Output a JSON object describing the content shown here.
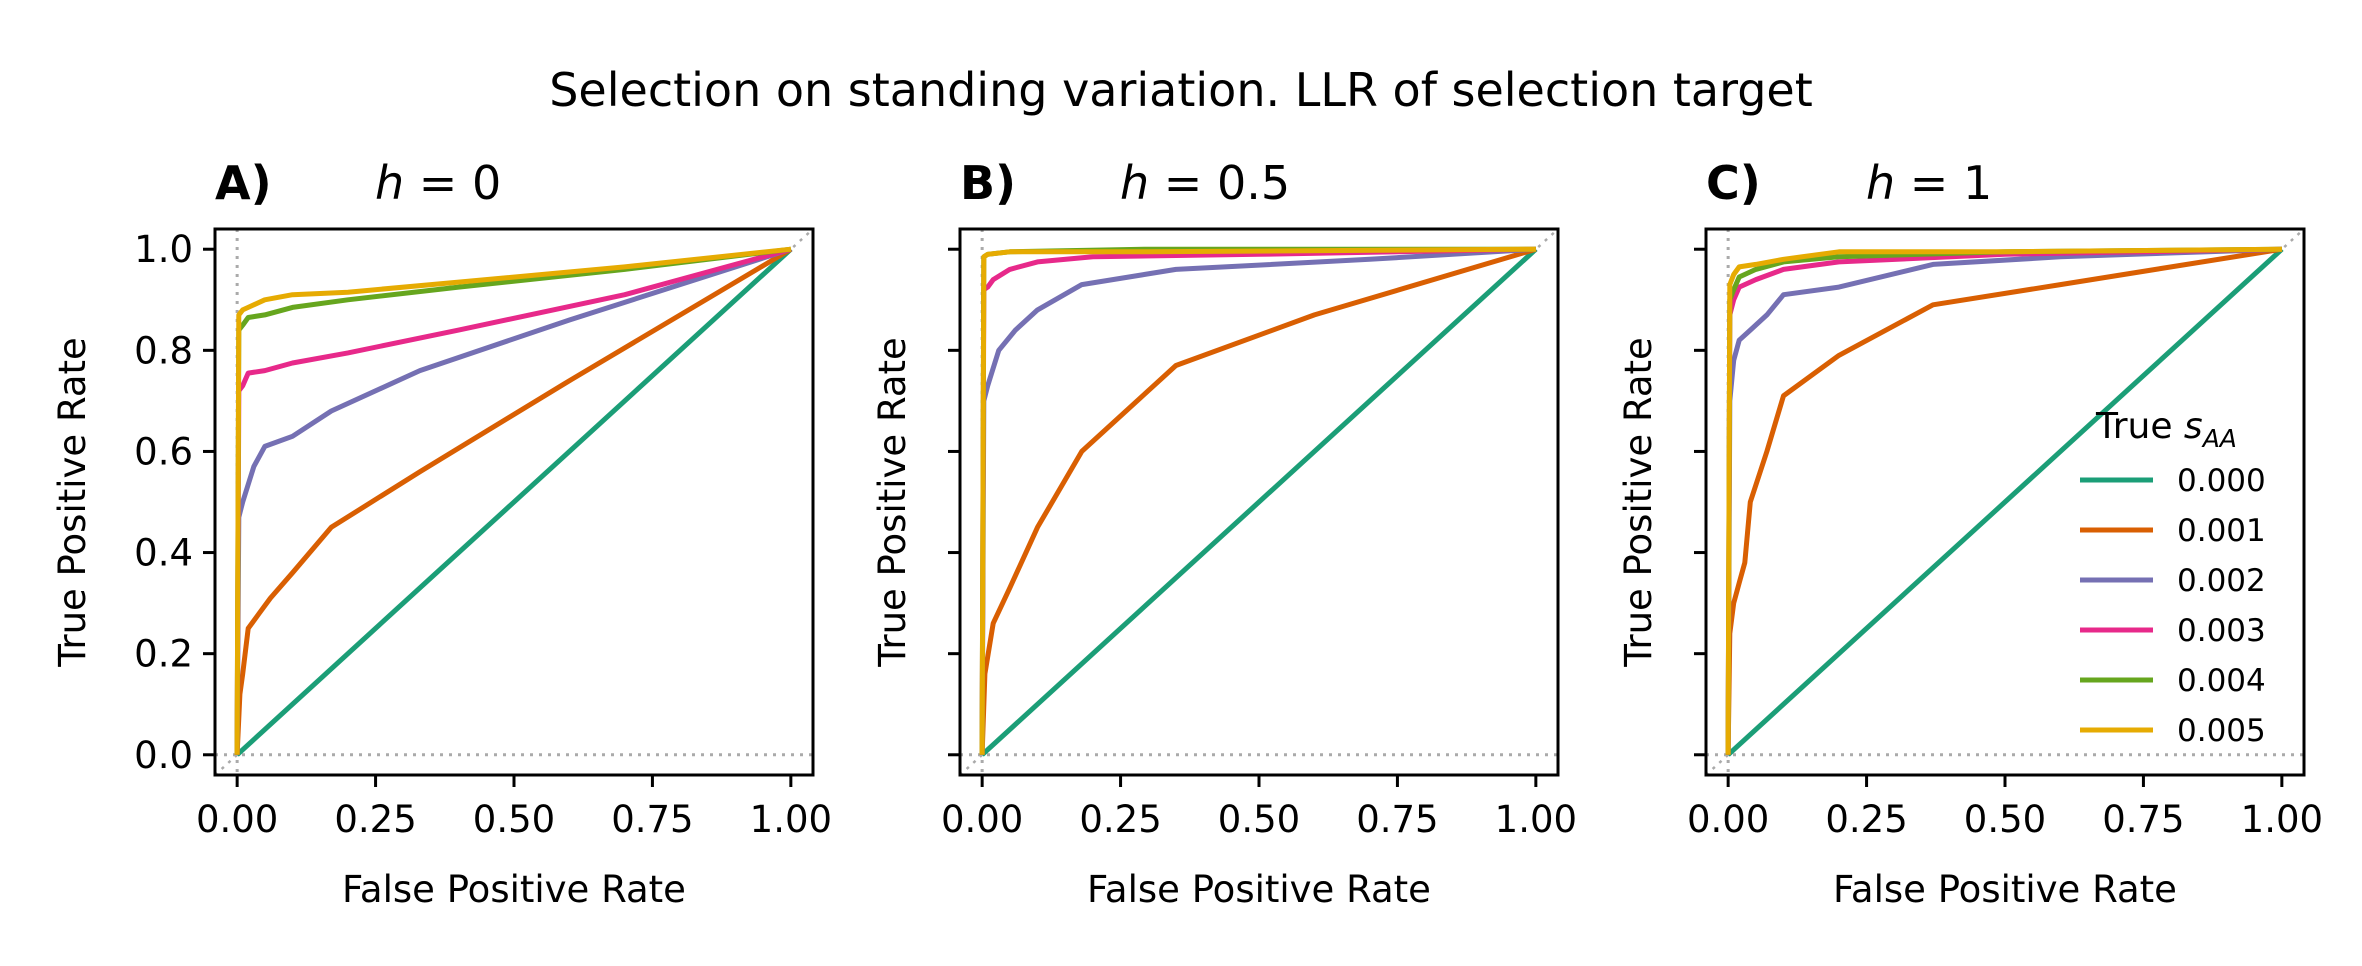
{
  "figure": {
    "title": "Selection on standing variation. LLR of selection target"
  },
  "colors": {
    "0.000": "#1b9e77",
    "0.001": "#d95f02",
    "0.002": "#7570b3",
    "0.003": "#e7298a",
    "0.004": "#66a61e",
    "0.005": "#e6ab02",
    "reference": "#aaaaaa"
  },
  "legend": {
    "title_text": "True ",
    "title_var": "s",
    "title_sub": "AA",
    "entries": [
      "0.000",
      "0.001",
      "0.002",
      "0.003",
      "0.004",
      "0.005"
    ]
  },
  "chart_data": [
    {
      "type": "line",
      "panel": "A)",
      "title": "h = 0",
      "title_var": "h",
      "title_val": "0",
      "xlabel": "False Positive Rate",
      "ylabel": "True Positive Rate",
      "xlim": [
        -0.04,
        1.04
      ],
      "ylim": [
        -0.04,
        1.04
      ],
      "xticks": [
        "0.00",
        "0.25",
        "0.50",
        "0.75",
        "1.00"
      ],
      "yticks": [
        "0.0",
        "0.2",
        "0.4",
        "0.6",
        "0.8",
        "1.0"
      ],
      "show_ytick_labels": true,
      "series": [
        {
          "name": "0.000",
          "x": [
            0,
            1
          ],
          "y": [
            0,
            1
          ]
        },
        {
          "name": "0.001",
          "x": [
            0,
            0.005,
            0.01,
            0.02,
            0.04,
            0.06,
            0.1,
            0.17,
            0.33,
            0.6,
            1.0
          ],
          "y": [
            0,
            0.12,
            0.16,
            0.25,
            0.28,
            0.31,
            0.36,
            0.45,
            0.56,
            0.74,
            1.0
          ]
        },
        {
          "name": "0.002",
          "x": [
            0,
            0.003,
            0.01,
            0.03,
            0.05,
            0.1,
            0.17,
            0.33,
            0.6,
            1.0
          ],
          "y": [
            0,
            0.47,
            0.5,
            0.57,
            0.61,
            0.63,
            0.68,
            0.76,
            0.86,
            1.0
          ]
        },
        {
          "name": "0.003",
          "x": [
            0,
            0.003,
            0.01,
            0.02,
            0.05,
            0.1,
            0.2,
            0.4,
            0.7,
            1.0
          ],
          "y": [
            0,
            0.72,
            0.73,
            0.755,
            0.76,
            0.775,
            0.795,
            0.84,
            0.91,
            1.0
          ]
        },
        {
          "name": "0.004",
          "x": [
            0,
            0.003,
            0.01,
            0.02,
            0.05,
            0.1,
            0.2,
            0.4,
            0.7,
            1.0
          ],
          "y": [
            0,
            0.84,
            0.85,
            0.865,
            0.87,
            0.885,
            0.9,
            0.925,
            0.96,
            1.0
          ]
        },
        {
          "name": "0.005",
          "x": [
            0,
            0.003,
            0.01,
            0.02,
            0.05,
            0.1,
            0.2,
            0.4,
            0.7,
            1.0
          ],
          "y": [
            0,
            0.87,
            0.88,
            0.885,
            0.9,
            0.91,
            0.915,
            0.935,
            0.965,
            1.0
          ]
        }
      ]
    },
    {
      "type": "line",
      "panel": "B)",
      "title": "h = 0.5",
      "title_var": "h",
      "title_val": "0.5",
      "xlabel": "False Positive Rate",
      "ylabel": "True Positive Rate",
      "xlim": [
        -0.04,
        1.04
      ],
      "ylim": [
        -0.04,
        1.04
      ],
      "xticks": [
        "0.00",
        "0.25",
        "0.50",
        "0.75",
        "1.00"
      ],
      "yticks": [
        "0.0",
        "0.2",
        "0.4",
        "0.6",
        "0.8",
        "1.0"
      ],
      "show_ytick_labels": false,
      "series": [
        {
          "name": "0.000",
          "x": [
            0,
            1
          ],
          "y": [
            0,
            1
          ]
        },
        {
          "name": "0.001",
          "x": [
            0,
            0.005,
            0.02,
            0.05,
            0.1,
            0.18,
            0.35,
            0.6,
            1.0
          ],
          "y": [
            0,
            0.16,
            0.26,
            0.33,
            0.45,
            0.6,
            0.77,
            0.87,
            1.0
          ]
        },
        {
          "name": "0.002",
          "x": [
            0,
            0.003,
            0.01,
            0.03,
            0.06,
            0.1,
            0.18,
            0.35,
            0.7,
            1.0
          ],
          "y": [
            0,
            0.7,
            0.73,
            0.8,
            0.84,
            0.88,
            0.93,
            0.96,
            0.98,
            1.0
          ]
        },
        {
          "name": "0.003",
          "x": [
            0,
            0.003,
            0.01,
            0.02,
            0.05,
            0.1,
            0.2,
            0.5,
            1.0
          ],
          "y": [
            0,
            0.92,
            0.925,
            0.94,
            0.96,
            0.975,
            0.985,
            0.99,
            1.0
          ]
        },
        {
          "name": "0.004",
          "x": [
            0,
            0.003,
            0.01,
            0.05,
            0.3,
            1.0
          ],
          "y": [
            0,
            0.985,
            0.99,
            0.995,
            1.0,
            1.0
          ]
        },
        {
          "name": "0.005",
          "x": [
            0,
            0.003,
            0.01,
            0.05,
            0.3,
            1.0
          ],
          "y": [
            0,
            0.985,
            0.99,
            0.995,
            0.995,
            1.0
          ]
        }
      ]
    },
    {
      "type": "line",
      "panel": "C)",
      "title": "h = 1",
      "title_var": "h",
      "title_val": "1",
      "xlabel": "False Positive Rate",
      "ylabel": "True Positive Rate",
      "xlim": [
        -0.04,
        1.04
      ],
      "ylim": [
        -0.04,
        1.04
      ],
      "xticks": [
        "0.00",
        "0.25",
        "0.50",
        "0.75",
        "1.00"
      ],
      "yticks": [
        "0.0",
        "0.2",
        "0.4",
        "0.6",
        "0.8",
        "1.0"
      ],
      "show_ytick_labels": false,
      "series": [
        {
          "name": "0.000",
          "x": [
            0,
            1
          ],
          "y": [
            0,
            1
          ]
        },
        {
          "name": "0.001",
          "x": [
            0,
            0.003,
            0.01,
            0.02,
            0.03,
            0.04,
            0.07,
            0.1,
            0.2,
            0.37,
            0.6,
            1.0
          ],
          "y": [
            0,
            0.24,
            0.3,
            0.34,
            0.38,
            0.5,
            0.6,
            0.71,
            0.79,
            0.89,
            0.93,
            1.0
          ]
        },
        {
          "name": "0.002",
          "x": [
            0,
            0.003,
            0.01,
            0.02,
            0.04,
            0.07,
            0.1,
            0.2,
            0.37,
            0.6,
            1.0
          ],
          "y": [
            0,
            0.7,
            0.78,
            0.82,
            0.84,
            0.87,
            0.91,
            0.925,
            0.97,
            0.985,
            1.0
          ]
        },
        {
          "name": "0.003",
          "x": [
            0,
            0.003,
            0.01,
            0.02,
            0.05,
            0.1,
            0.2,
            0.5,
            1.0
          ],
          "y": [
            0,
            0.87,
            0.9,
            0.925,
            0.94,
            0.96,
            0.975,
            0.99,
            1.0
          ]
        },
        {
          "name": "0.004",
          "x": [
            0,
            0.003,
            0.01,
            0.02,
            0.05,
            0.1,
            0.2,
            0.5,
            1.0
          ],
          "y": [
            0,
            0.9,
            0.92,
            0.945,
            0.96,
            0.975,
            0.985,
            0.995,
            1.0
          ]
        },
        {
          "name": "0.005",
          "x": [
            0,
            0.003,
            0.01,
            0.02,
            0.05,
            0.1,
            0.2,
            0.5,
            1.0
          ],
          "y": [
            0,
            0.93,
            0.95,
            0.965,
            0.97,
            0.98,
            0.995,
            0.995,
            1.0
          ]
        }
      ]
    }
  ]
}
